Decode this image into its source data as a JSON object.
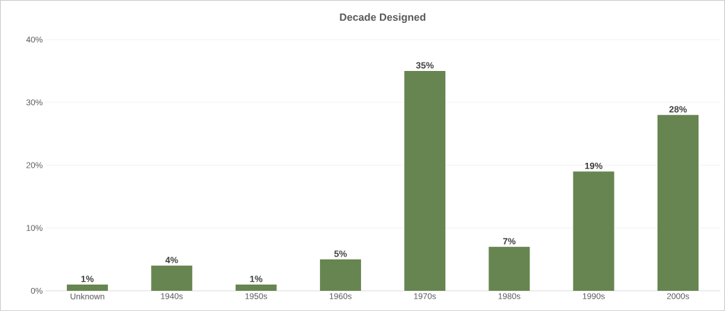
{
  "chart_data": {
    "type": "bar",
    "title": "Decade Designed",
    "categories": [
      "Unknown",
      "1940s",
      "1950s",
      "1960s",
      "1970s",
      "1980s",
      "1990s",
      "2000s"
    ],
    "values": [
      1,
      4,
      1,
      5,
      35,
      7,
      19,
      28
    ],
    "value_labels": [
      "1%",
      "4%",
      "1%",
      "5%",
      "35%",
      "7%",
      "19%",
      "28%"
    ],
    "color": "#678550",
    "ylim": [
      0,
      40
    ],
    "yticks": [
      {
        "value": 0,
        "label": "0%"
      },
      {
        "value": 10,
        "label": "10%"
      },
      {
        "value": 20,
        "label": "20%"
      },
      {
        "value": 30,
        "label": "30%"
      },
      {
        "value": 40,
        "label": "40%"
      }
    ],
    "grid": "y"
  }
}
